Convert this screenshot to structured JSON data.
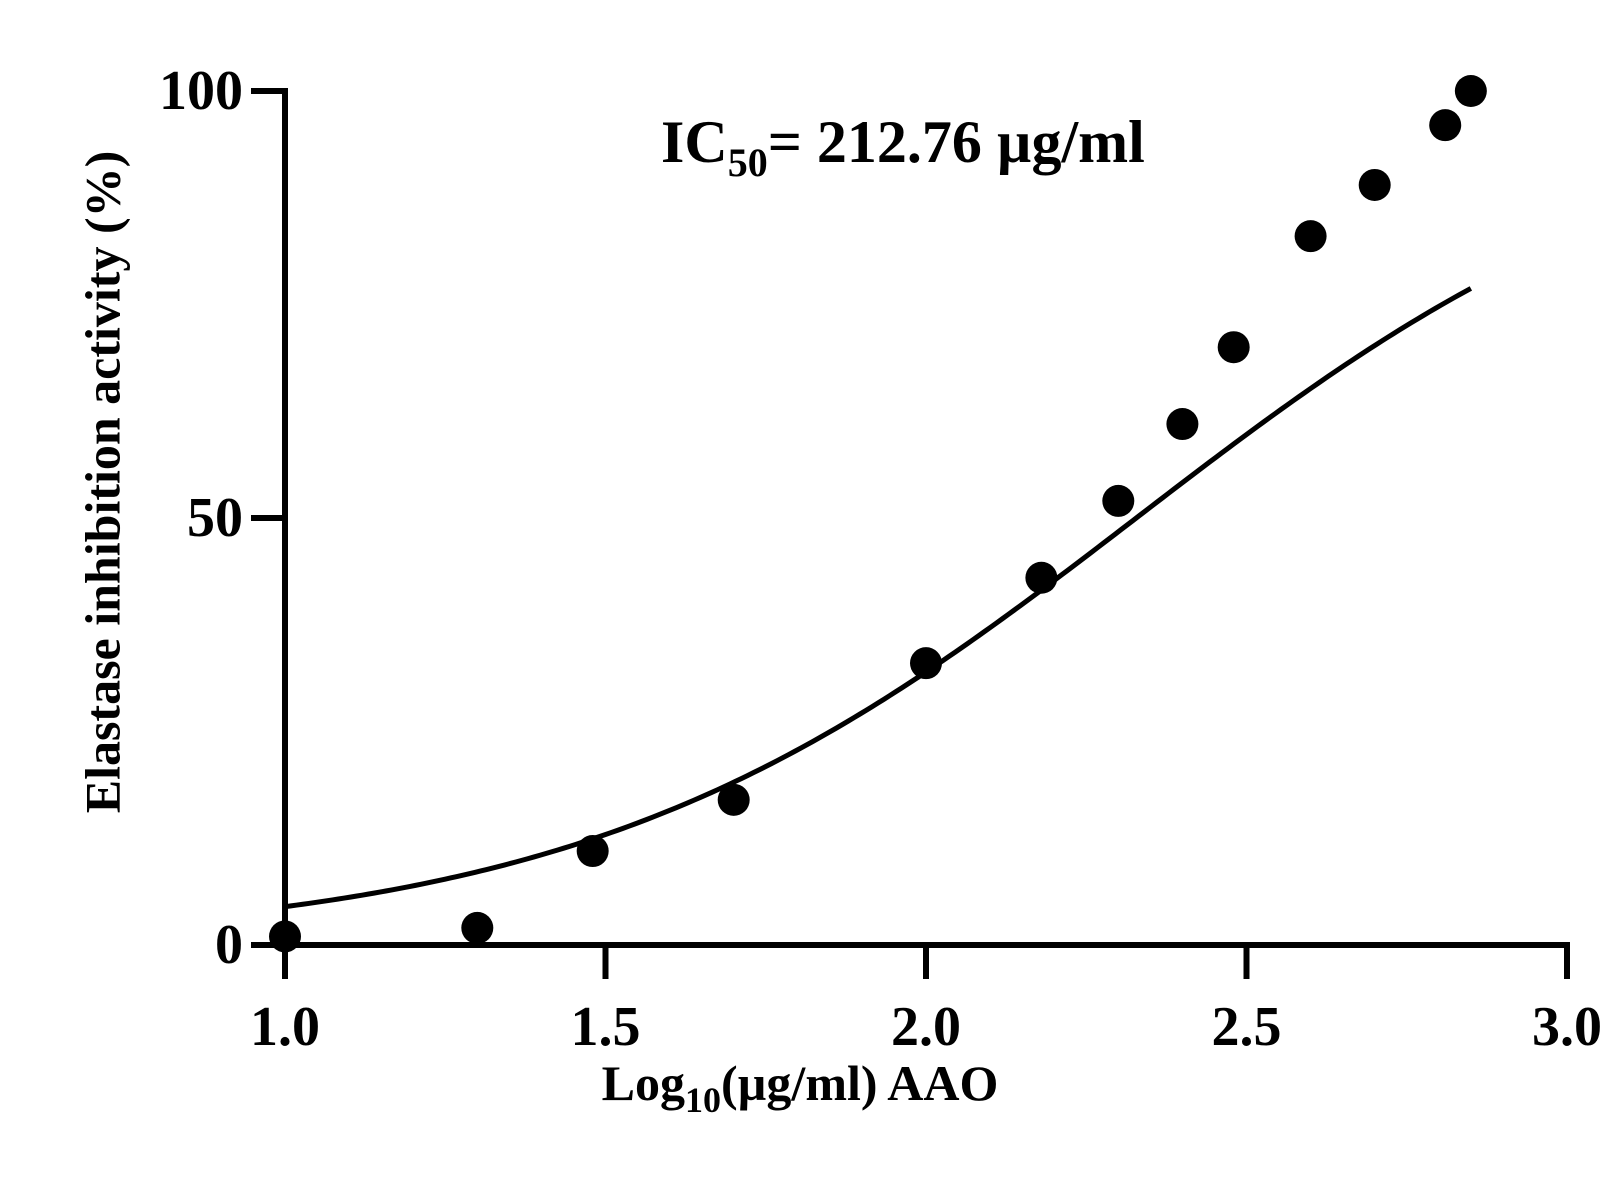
{
  "chart_data": {
    "type": "scatter",
    "title": "",
    "xlabel": {
      "main": "Log",
      "sub": "10",
      "rest": "(µg/ml) AAO"
    },
    "ylabel": "Elastase inhibition activity (%)",
    "xlim": [
      1.0,
      3.0
    ],
    "ylim": [
      0,
      100
    ],
    "x_ticks": [
      "1.0",
      "1.5",
      "2.0",
      "2.5",
      "3.0"
    ],
    "y_ticks": [
      "0",
      "50",
      "100"
    ],
    "grid": false,
    "annotation": {
      "main": "IC",
      "sub": "50",
      "rest": "= 212.76 µg/ml"
    },
    "points": {
      "x": [
        1.0,
        1.3,
        1.48,
        1.7,
        2.0,
        2.18,
        2.3,
        2.4,
        2.48,
        2.6,
        2.7,
        2.81,
        2.85
      ],
      "y": [
        1,
        2,
        11,
        17,
        33,
        43,
        52,
        61,
        70,
        83,
        89,
        96,
        100
      ]
    },
    "fit": {
      "type": "sigmoid",
      "x_range": [
        1.0,
        2.85
      ],
      "log_ic50": 2.328,
      "hill_slope": 1.0
    },
    "colors": {
      "points": "#000000",
      "line": "#000000"
    }
  }
}
